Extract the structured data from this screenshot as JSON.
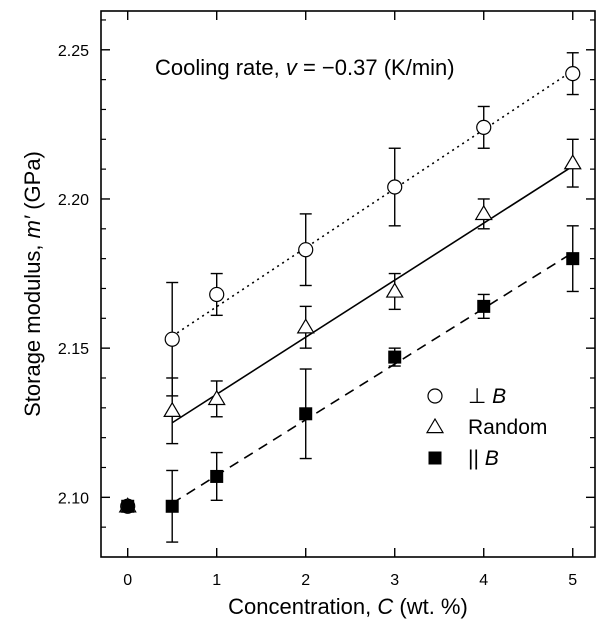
{
  "chart_data": {
    "type": "scatter",
    "title_parts": {
      "prefix": "Cooling rate, ",
      "var": "v",
      "suffix": " = −0.37 (K/min)"
    },
    "xlabel_parts": {
      "prefix": "Concentration, ",
      "var": "C",
      "suffix": " (wt. %)"
    },
    "ylabel_parts": {
      "prefix": "Storage modulus, ",
      "var": "m′",
      "suffix": " (GPa)"
    },
    "xlim": [
      -0.3,
      5.25
    ],
    "ylim": [
      2.08,
      2.263
    ],
    "xticks": [
      0,
      1,
      2,
      3,
      4,
      5
    ],
    "yticks": [
      2.1,
      2.15,
      2.2,
      2.25
    ],
    "xtick_labels": [
      "0",
      "1",
      "2",
      "3",
      "4",
      "5"
    ],
    "ytick_labels": [
      "2.10",
      "2.15",
      "2.20",
      "2.25"
    ],
    "grid": false,
    "legend_position": "bottom-right",
    "series": [
      {
        "legend_symbol": "○",
        "legend_prefix": "⊥ ",
        "legend_var": "B",
        "marker": "circle-open",
        "x": [
          0,
          0.5,
          1,
          2,
          3,
          4,
          5
        ],
        "y": [
          2.097,
          2.153,
          2.168,
          2.183,
          2.204,
          2.224,
          2.242
        ],
        "err": [
          0,
          0.019,
          0.007,
          0.012,
          0.013,
          0.007,
          0.007
        ],
        "fit": {
          "style": "dotted",
          "x": [
            0.5,
            5
          ],
          "y": [
            2.154,
            2.243
          ]
        }
      },
      {
        "legend_symbol": "△",
        "legend_prefix": "Random",
        "legend_var": "",
        "marker": "triangle-open",
        "x": [
          0,
          0.5,
          1,
          2,
          3,
          4,
          5
        ],
        "y": [
          2.097,
          2.129,
          2.133,
          2.157,
          2.169,
          2.195,
          2.212
        ],
        "err": [
          0,
          0.011,
          0.006,
          0.007,
          0.006,
          0.005,
          0.008
        ],
        "fit": {
          "style": "solid",
          "x": [
            0.5,
            5
          ],
          "y": [
            2.125,
            2.211
          ]
        }
      },
      {
        "legend_symbol": "■",
        "legend_prefix": "|| ",
        "legend_var": "B",
        "marker": "square-filled",
        "x": [
          0,
          0.5,
          1,
          2,
          3,
          4,
          5
        ],
        "y": [
          2.097,
          2.097,
          2.107,
          2.128,
          2.147,
          2.164,
          2.18
        ],
        "err": [
          0,
          0.012,
          0.008,
          0.015,
          0.003,
          0.004,
          0.011
        ],
        "fit": {
          "style": "dashed",
          "x": [
            0.5,
            5
          ],
          "y": [
            2.098,
            2.182
          ]
        }
      }
    ]
  }
}
